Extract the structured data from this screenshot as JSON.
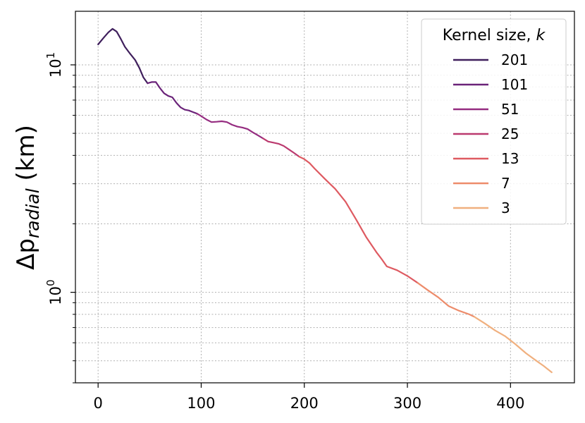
{
  "chart_data": {
    "type": "line",
    "ylabel": "Δp_radial (km)",
    "xlabel": "",
    "title": "",
    "xlim": [
      -22,
      462
    ],
    "ylim": [
      0.4,
      17.2
    ],
    "yscale": "log",
    "grid": true,
    "legend": {
      "title": "Kernel size, k",
      "placement": "top-right"
    },
    "x_ticks": [
      0,
      100,
      200,
      300,
      400
    ],
    "y_major_ticks": [
      1,
      10
    ],
    "y_minor_ticks": [
      0.4,
      0.5,
      0.6,
      0.7,
      0.8,
      0.9,
      2,
      3,
      4,
      5,
      6,
      7,
      8,
      9
    ],
    "series": [
      {
        "name": "201",
        "color": "#3f1f5c",
        "points": [
          [
            0,
            12.3
          ],
          [
            5,
            13.1
          ],
          [
            10,
            13.9
          ],
          [
            14,
            14.4
          ],
          [
            18,
            14.0
          ],
          [
            22,
            13.0
          ],
          [
            26,
            12.0
          ],
          [
            31,
            11.2
          ],
          [
            36,
            10.5
          ],
          [
            40,
            9.7
          ],
          [
            44,
            8.8
          ],
          [
            48,
            8.3
          ]
        ]
      },
      {
        "name": "101",
        "color": "#6a2379",
        "points": [
          [
            48,
            8.3
          ],
          [
            52,
            8.4
          ],
          [
            56,
            8.4
          ],
          [
            60,
            7.9
          ],
          [
            64,
            7.5
          ],
          [
            68,
            7.3
          ],
          [
            72,
            7.2
          ],
          [
            76,
            6.8
          ],
          [
            80,
            6.5
          ],
          [
            84,
            6.35
          ],
          [
            88,
            6.3
          ],
          [
            92,
            6.2
          ],
          [
            96,
            6.1
          ]
        ]
      },
      {
        "name": "51",
        "color": "#952c80",
        "points": [
          [
            96,
            6.1
          ],
          [
            100,
            5.95
          ],
          [
            105,
            5.75
          ],
          [
            110,
            5.6
          ],
          [
            115,
            5.62
          ],
          [
            120,
            5.65
          ],
          [
            125,
            5.6
          ],
          [
            130,
            5.45
          ],
          [
            135,
            5.35
          ],
          [
            140,
            5.3
          ],
          [
            145,
            5.22
          ],
          [
            150,
            5.05
          ],
          [
            155,
            4.9
          ],
          [
            160,
            4.75
          ]
        ]
      },
      {
        "name": "25",
        "color": "#bb3a6f",
        "points": [
          [
            160,
            4.75
          ],
          [
            165,
            4.6
          ],
          [
            170,
            4.55
          ],
          [
            175,
            4.5
          ],
          [
            180,
            4.4
          ],
          [
            185,
            4.25
          ],
          [
            190,
            4.1
          ],
          [
            195,
            3.95
          ]
        ]
      },
      {
        "name": "13",
        "color": "#de5a61",
        "points": [
          [
            195,
            3.95
          ],
          [
            200,
            3.85
          ],
          [
            205,
            3.7
          ],
          [
            210,
            3.5
          ],
          [
            220,
            3.15
          ],
          [
            230,
            2.85
          ],
          [
            240,
            2.5
          ],
          [
            250,
            2.1
          ],
          [
            260,
            1.75
          ],
          [
            270,
            1.5
          ],
          [
            275,
            1.4
          ],
          [
            280,
            1.3
          ],
          [
            290,
            1.25
          ],
          [
            300,
            1.18
          ],
          [
            310,
            1.1
          ]
        ]
      },
      {
        "name": "7",
        "color": "#ed8c6b",
        "points": [
          [
            310,
            1.1
          ],
          [
            320,
            1.02
          ],
          [
            330,
            0.95
          ],
          [
            340,
            0.87
          ],
          [
            350,
            0.83
          ],
          [
            360,
            0.8
          ],
          [
            365,
            0.78
          ]
        ]
      },
      {
        "name": "3",
        "color": "#f0b07f",
        "points": [
          [
            365,
            0.78
          ],
          [
            375,
            0.73
          ],
          [
            385,
            0.68
          ],
          [
            395,
            0.64
          ],
          [
            405,
            0.59
          ],
          [
            415,
            0.54
          ],
          [
            425,
            0.5
          ],
          [
            432,
            0.475
          ],
          [
            440,
            0.445
          ]
        ]
      }
    ]
  }
}
